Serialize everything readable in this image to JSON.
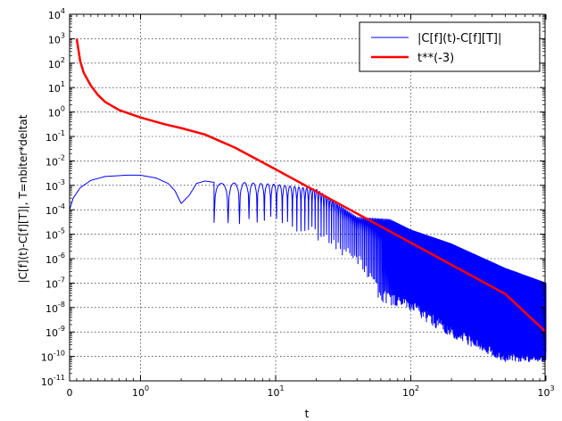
{
  "chart_data": {
    "type": "line",
    "xlabel": "t",
    "ylabel": "|C[f](t)-C[f][T]|, T=nbiter*deltat",
    "xscale": "symlog",
    "yscale": "log",
    "xlim": [
      0,
      1000
    ],
    "ylim": [
      1e-11,
      10000
    ],
    "x_ticks": [
      {
        "base": "0",
        "exp": ""
      },
      {
        "base": "10",
        "exp": "0"
      },
      {
        "base": "10",
        "exp": "1"
      },
      {
        "base": "10",
        "exp": "2"
      },
      {
        "base": "10",
        "exp": "3"
      }
    ],
    "y_ticks": [
      {
        "exp": "-11"
      },
      {
        "exp": "-10"
      },
      {
        "exp": "-9"
      },
      {
        "exp": "-8"
      },
      {
        "exp": "-7"
      },
      {
        "exp": "-6"
      },
      {
        "exp": "-5"
      },
      {
        "exp": "-4"
      },
      {
        "exp": "-3"
      },
      {
        "exp": "-2"
      },
      {
        "exp": "-1"
      },
      {
        "exp": "0"
      },
      {
        "exp": "1"
      },
      {
        "exp": "2"
      },
      {
        "exp": "3"
      },
      {
        "exp": "4"
      }
    ],
    "grid": true,
    "legend_position": "top-right",
    "series": [
      {
        "name": "|C[f](t)-C[f][T]|",
        "color": "#0000ff",
        "style": "oscillating",
        "envelope": [
          [
            0,
            0.0001
          ],
          [
            0.05,
            0.0003
          ],
          [
            0.15,
            0.0008
          ],
          [
            0.3,
            0.0016
          ],
          [
            0.5,
            0.0023
          ],
          [
            0.8,
            0.0026
          ],
          [
            1.0,
            0.0026
          ],
          [
            1.3,
            0.002
          ],
          [
            1.6,
            0.0012
          ],
          [
            1.8,
            0.0006
          ],
          [
            2.0,
            0.00018
          ],
          [
            2.3,
            0.0004
          ],
          [
            2.6,
            0.0012
          ],
          [
            3.0,
            0.0015
          ],
          [
            4.0,
            0.0012
          ],
          [
            6.0,
            0.0013
          ],
          [
            10.0,
            0.0011
          ],
          [
            20.0,
            0.0007
          ],
          [
            40.0,
            5e-05
          ],
          [
            70.0,
            4e-05
          ],
          [
            100.0,
            1.5e-05
          ],
          [
            200.0,
            4e-06
          ],
          [
            500.0,
            4e-07
          ],
          [
            1000.0,
            1e-07
          ]
        ],
        "minima_floor": [
          [
            4,
            2e-05
          ],
          [
            10,
            3e-05
          ],
          [
            20,
            1e-05
          ],
          [
            40,
            1e-06
          ],
          [
            60,
            3e-08
          ],
          [
            100,
            1e-08
          ],
          [
            200,
            1e-09
          ],
          [
            500,
            1e-10
          ],
          [
            1000,
            1e-10
          ]
        ]
      },
      {
        "name": "t**(-3)",
        "color": "#ff0000",
        "x": [
          0.1,
          0.15,
          0.2,
          0.3,
          0.4,
          0.5,
          0.7,
          1.0,
          1.5,
          2.0,
          3.0,
          5,
          10,
          20,
          50,
          100,
          200,
          500,
          1000
        ],
        "y": [
          1000,
          120,
          40,
          12,
          5,
          2.6,
          1.2,
          0.6,
          0.32,
          0.22,
          0.12,
          0.035,
          0.0045,
          0.00056,
          3.6e-05,
          4.5e-06,
          5.6e-07,
          3.6e-08,
          1e-09
        ]
      }
    ]
  }
}
